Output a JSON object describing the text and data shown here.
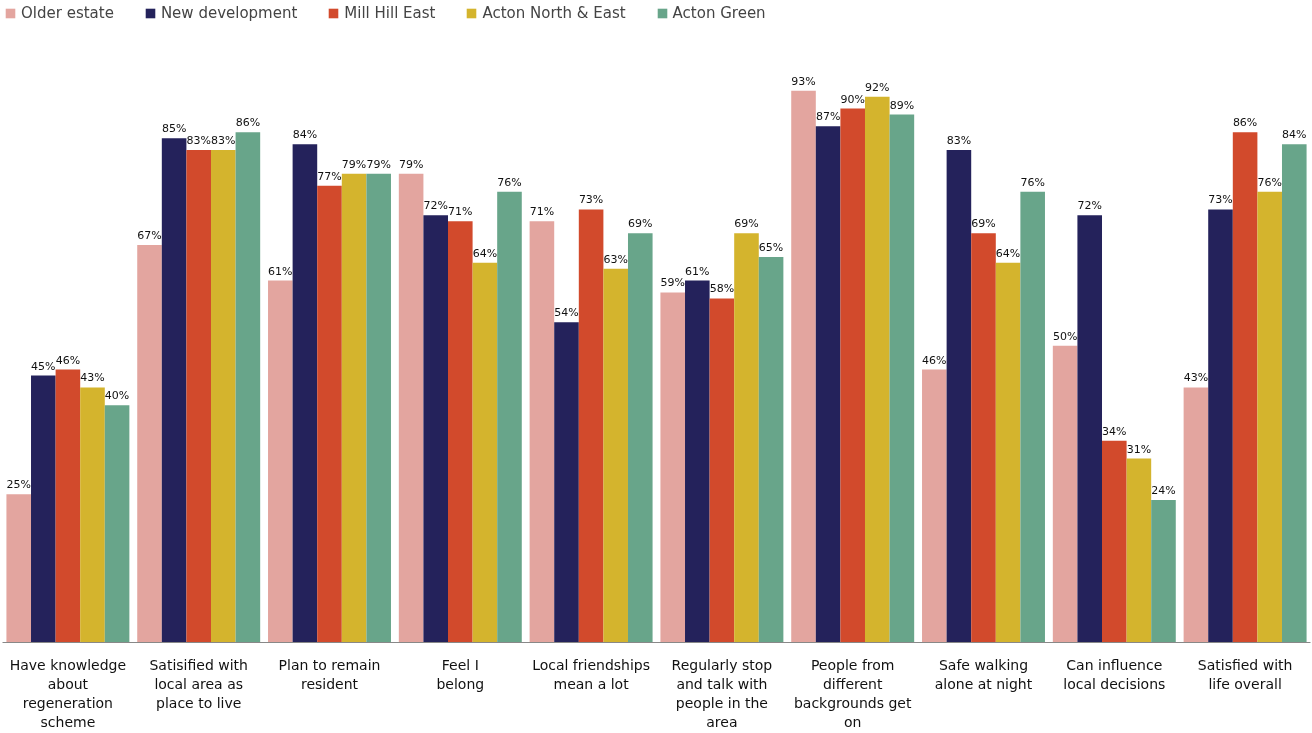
{
  "chart_data": {
    "type": "bar",
    "categories": [
      "Have knowledge\nabout\nregeneration\nscheme",
      "Satisified with\nlocal area as\nplace to live",
      "Plan to remain\nresident",
      "Feel I\nbelong",
      "Local friendships\nmean a lot",
      "Regularly stop\nand talk with\npeople in the\narea",
      "People from\ndifferent\nbackgrounds get\non",
      "Safe walking\nalone at night",
      "Can influence\nlocal decisions",
      "Satisfied with\nlife overall"
    ],
    "series": [
      {
        "name": "Older estate",
        "color": "#e3a59f",
        "values": [
          25,
          67,
          61,
          79,
          71,
          59,
          93,
          46,
          50,
          43
        ],
        "value_labels": [
          "25%",
          "67%",
          "61%",
          "79%",
          "71%",
          "59%",
          "93%",
          "46%",
          "50%",
          "43%"
        ]
      },
      {
        "name": "New development",
        "color": "#24225b",
        "values": [
          45,
          85,
          84,
          72,
          54,
          61,
          87,
          83,
          72,
          73
        ],
        "value_labels": [
          "45%",
          "85%",
          "84%",
          "72%",
          "54%",
          "61%",
          "87%",
          "83%",
          "72%",
          "73%"
        ]
      },
      {
        "name": "Mill Hill East",
        "color": "#d24a2c",
        "values": [
          46,
          83,
          77,
          71,
          73,
          58,
          90,
          69,
          34,
          86
        ],
        "value_labels": [
          "46%",
          "83%",
          "77%",
          "71%",
          "73%",
          "58%",
          "90%",
          "69%",
          "34%",
          "86%"
        ]
      },
      {
        "name": "Acton North & East",
        "color": "#d4b42d",
        "values": [
          43,
          83,
          79,
          64,
          63,
          69,
          92,
          64,
          31,
          76
        ],
        "value_labels": [
          "43%",
          "83%",
          "79%",
          "64%",
          "63%",
          "69%",
          "92%",
          "64%",
          "31%",
          "76%"
        ]
      },
      {
        "name": "Acton Green",
        "color": "#68a58a",
        "values": [
          40,
          86,
          79,
          76,
          69,
          65,
          89,
          76,
          24,
          84
        ],
        "value_labels": [
          "40%",
          "86%",
          "79%",
          "76%",
          "69%",
          "65%",
          "89%",
          "76%",
          "24%",
          "84%"
        ]
      }
    ],
    "legend": "top left"
  }
}
